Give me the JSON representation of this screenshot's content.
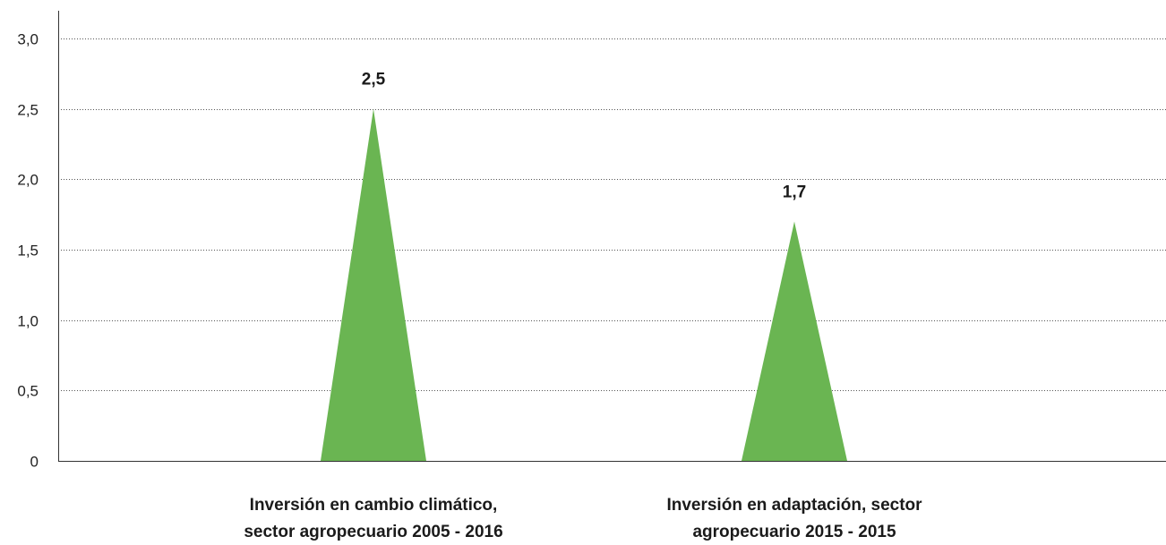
{
  "chart_data": {
    "type": "bar",
    "bar_shape": "triangle",
    "categories": [
      [
        "Inversión en cambio climático,",
        "sector agropecuario 2005 - 2016"
      ],
      [
        "Inversión en adaptación, sector",
        "agropecuario 2015 - 2015"
      ]
    ],
    "values": [
      2.5,
      1.7
    ],
    "data_labels": [
      "2,5",
      "1,7"
    ],
    "y_ticks": [
      {
        "value": 0,
        "label": "0"
      },
      {
        "value": 0.5,
        "label": "0,5"
      },
      {
        "value": 1.0,
        "label": "1,0"
      },
      {
        "value": 1.5,
        "label": "1,5"
      },
      {
        "value": 2.0,
        "label": "2,0"
      },
      {
        "value": 2.5,
        "label": "2,5"
      },
      {
        "value": 3.0,
        "label": "3,0"
      }
    ],
    "ylim": [
      0,
      3.0
    ],
    "grid": "horizontal dotted",
    "legend": "none",
    "title": "",
    "xlabel": "",
    "ylabel": "",
    "colors": {
      "bar": "#6ab552",
      "grid": "#555555",
      "axis": "#333333"
    }
  }
}
